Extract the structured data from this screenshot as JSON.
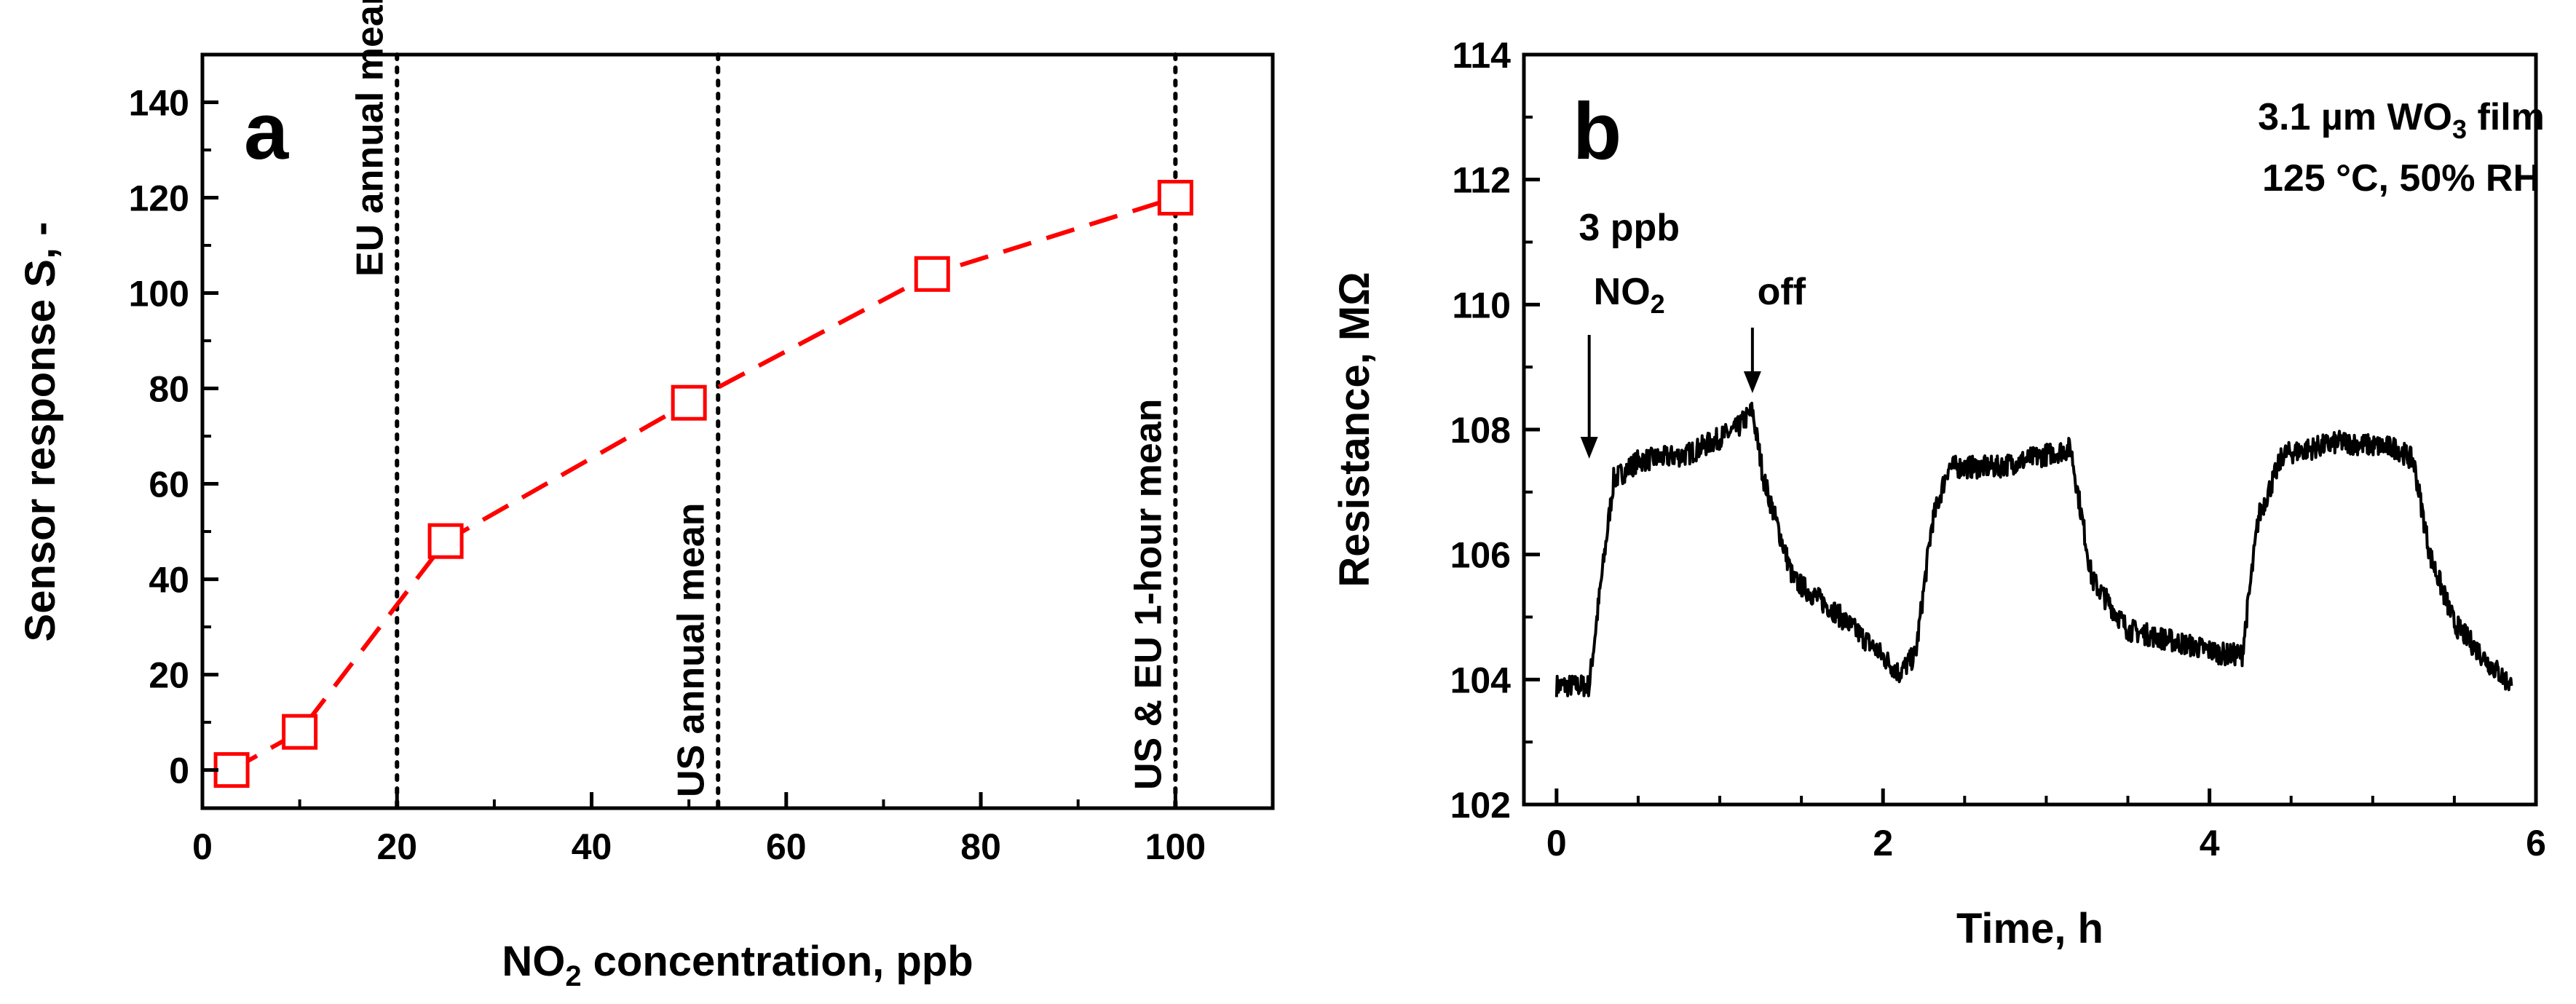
{
  "chart_data": [
    {
      "type": "scatter",
      "panel_label": "a",
      "title": "",
      "xlabel": "NO",
      "xlabel_sub": "2",
      "xlabel_rest": " concentration, ppb",
      "ylabel": "Sensor response S, -",
      "xlim": [
        0,
        110
      ],
      "ylim": [
        -8,
        150
      ],
      "xticks": [
        0,
        20,
        40,
        60,
        80,
        100
      ],
      "yticks": [
        0,
        20,
        40,
        60,
        80,
        100,
        120,
        140
      ],
      "grid": false,
      "series": [
        {
          "name": "Sensor response",
          "color": "#ff0000",
          "marker": "open-square",
          "line": "dashed",
          "x": [
            3,
            10,
            25,
            50,
            75,
            100
          ],
          "y": [
            0,
            8,
            48,
            77,
            104,
            120
          ]
        }
      ],
      "reference_lines": [
        {
          "x": 20,
          "label": "EU annual mean"
        },
        {
          "x": 53,
          "label": "US annual mean"
        },
        {
          "x": 100,
          "label": "US & EU 1-hour mean"
        }
      ]
    },
    {
      "type": "line",
      "panel_label": "b",
      "title": "",
      "xlabel": "Time, h",
      "ylabel": "Resistance, MΩ",
      "xlim": [
        -0.2,
        6
      ],
      "ylim": [
        102,
        114
      ],
      "xticks": [
        0,
        2,
        4,
        6
      ],
      "yticks": [
        102,
        104,
        106,
        108,
        110,
        112,
        114
      ],
      "grid": false,
      "annotation_line1": "3.1 µm WO",
      "annotation_line1_sub": "3",
      "annotation_line1_rest": " film",
      "annotation_line2": "125 °C, 50% RH",
      "event_on_label1": "3 ppb",
      "event_on_label2": "NO",
      "event_on_label2_sub": "2",
      "event_off_label": "off",
      "event_on_x": 0.2,
      "event_off_x": 1.2,
      "series": [
        {
          "name": "Resistance",
          "color": "#000000",
          "key_points": [
            [
              0.0,
              103.9
            ],
            [
              0.2,
              103.9
            ],
            [
              0.27,
              105.5
            ],
            [
              0.35,
              107.2
            ],
            [
              0.5,
              107.5
            ],
            [
              0.8,
              107.6
            ],
            [
              1.1,
              108.0
            ],
            [
              1.2,
              108.3
            ],
            [
              1.27,
              107.2
            ],
            [
              1.45,
              105.6
            ],
            [
              1.7,
              105.1
            ],
            [
              1.95,
              104.5
            ],
            [
              2.1,
              104.1
            ],
            [
              2.2,
              104.4
            ],
            [
              2.3,
              106.5
            ],
            [
              2.4,
              107.4
            ],
            [
              2.7,
              107.4
            ],
            [
              3.0,
              107.6
            ],
            [
              3.15,
              107.7
            ],
            [
              3.28,
              105.6
            ],
            [
              3.5,
              104.8
            ],
            [
              3.8,
              104.6
            ],
            [
              4.1,
              104.4
            ],
            [
              4.2,
              104.4
            ],
            [
              4.3,
              106.6
            ],
            [
              4.45,
              107.6
            ],
            [
              4.8,
              107.8
            ],
            [
              5.15,
              107.7
            ],
            [
              5.25,
              107.5
            ],
            [
              5.35,
              106.0
            ],
            [
              5.5,
              104.9
            ],
            [
              5.7,
              104.3
            ],
            [
              5.85,
              103.9
            ]
          ],
          "noise_amplitude": 0.18
        }
      ]
    }
  ]
}
